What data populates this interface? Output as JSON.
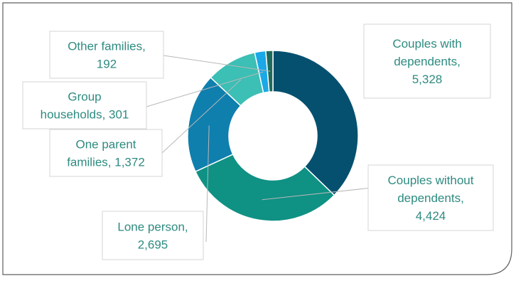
{
  "chart_data": {
    "type": "pie",
    "variant": "donut",
    "title": "",
    "slices": [
      {
        "category": "Couples with dependents",
        "value": 5328,
        "value_label": "5,328",
        "color": "#05506e",
        "label_lines": [
          "Couples with",
          "dependents,",
          "5,328"
        ]
      },
      {
        "category": "Couples without dependents",
        "value": 4424,
        "value_label": "4,424",
        "color": "#0f9184",
        "label_lines": [
          "Couples without",
          "dependents,",
          "4,424"
        ]
      },
      {
        "category": "Lone person",
        "value": 2695,
        "value_label": "2,695",
        "color": "#0f7fae",
        "label_lines": [
          "Lone person,",
          "2,695"
        ]
      },
      {
        "category": "One parent families",
        "value": 1372,
        "value_label": "1,372",
        "color": "#3cbfb5",
        "label_lines": [
          "One parent",
          "families, 1,372"
        ]
      },
      {
        "category": "Group households",
        "value": 301,
        "value_label": "301",
        "color": "#1ba8e6",
        "label_lines": [
          "Group",
          "households, 301"
        ]
      },
      {
        "category": "Other families",
        "value": 192,
        "value_label": "192",
        "color": "#1d6b5c",
        "label_lines": [
          "Other families,",
          "192"
        ]
      }
    ]
  }
}
